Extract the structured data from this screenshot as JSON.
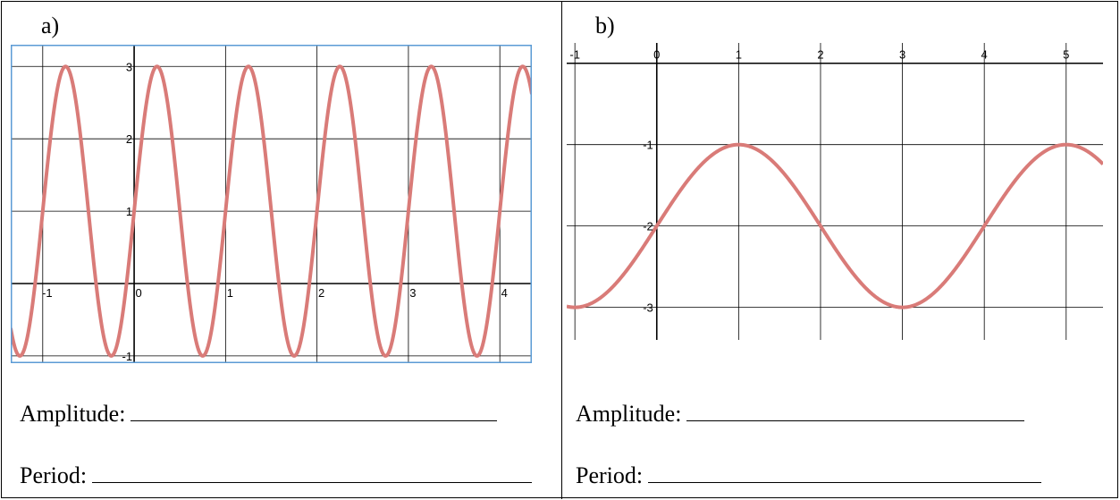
{
  "chart_data": [
    {
      "type": "line",
      "panel_label": "a)",
      "xlim": [
        -1.35,
        4.35
      ],
      "ylim": [
        -1.1,
        3.3
      ],
      "x_ticks": [
        -1,
        0,
        1,
        2,
        3,
        4
      ],
      "y_ticks": [
        -1,
        1,
        2,
        3
      ],
      "x_tick_labels": [
        "-1",
        "0",
        "1",
        "2",
        "3",
        "4"
      ],
      "y_tick_labels": [
        "-1",
        "1",
        "2",
        "3"
      ],
      "grid": true,
      "frame_color": "#5b9bd5",
      "line_color": "#d97b78",
      "function": {
        "amplitude": 2,
        "period": 1,
        "midline": 1,
        "phase_x": 0
      },
      "x": [
        -1,
        -0.75,
        -0.5,
        -0.25,
        0,
        0.25,
        0.5,
        0.75,
        1,
        1.25,
        1.5,
        1.75,
        2,
        2.25,
        2.5,
        2.75,
        3,
        3.25,
        3.5,
        3.75,
        4,
        4.25
      ],
      "y": [
        1,
        3,
        1,
        -1,
        1,
        3,
        1,
        -1,
        1,
        3,
        1,
        -1,
        1,
        3,
        1,
        -1,
        1,
        3,
        1,
        -1,
        1,
        3
      ]
    },
    {
      "type": "line",
      "panel_label": "b)",
      "xlim": [
        -1.1,
        5.45
      ],
      "ylim": [
        -3.4,
        0.25
      ],
      "x_ticks": [
        -1,
        0,
        1,
        2,
        3,
        4,
        5
      ],
      "y_ticks": [
        -1,
        -2,
        -3
      ],
      "x_tick_labels": [
        "-1",
        "0",
        "1",
        "2",
        "3",
        "4",
        "5"
      ],
      "y_tick_labels": [
        "-1",
        "-2",
        "-3"
      ],
      "grid": true,
      "line_color": "#d97b78",
      "function": {
        "amplitude": 1,
        "period": 4,
        "midline": -2,
        "phase_x": 0
      },
      "x": [
        -1,
        0,
        1,
        2,
        3,
        4,
        5
      ],
      "y": [
        -3,
        -2,
        -1,
        -2,
        -3,
        -2,
        -1
      ]
    }
  ],
  "cells": {
    "a": {
      "label": "a)",
      "amplitude_label": "Amplitude:",
      "period_label": "Period:"
    },
    "b": {
      "label": "b)",
      "amplitude_label": "Amplitude:",
      "period_label": "Period:"
    }
  }
}
